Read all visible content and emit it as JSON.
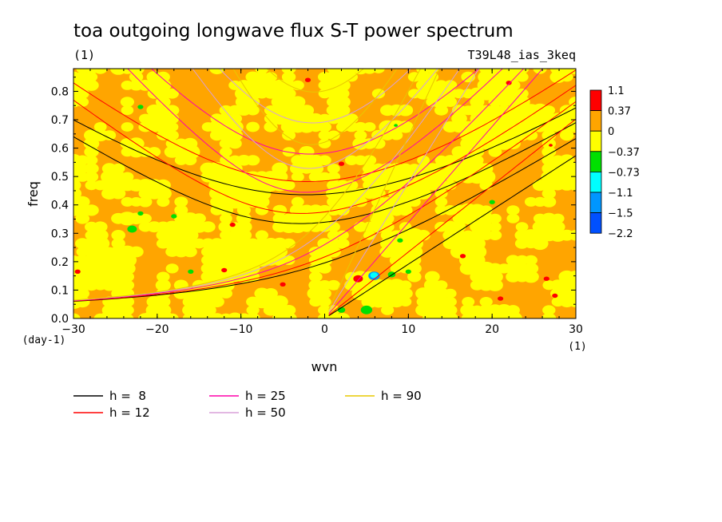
{
  "chart_data": {
    "type": "heatmap",
    "title": "toa outgoing longwave flux S-T power spectrum",
    "subtitle_left": "(1)",
    "subtitle_right": "T39L48_ias_3keq",
    "xlabel": "wvn",
    "ylabel": "freq",
    "x_unit": "(1)",
    "y_unit": "(day-1)",
    "xlim": [
      -30,
      30
    ],
    "ylim": [
      0.0,
      0.88
    ],
    "x_ticks": [
      -30,
      -20,
      -10,
      0,
      10,
      20,
      30
    ],
    "x_tick_labels": [
      "−30",
      "−20",
      "−10",
      "0",
      "10",
      "20",
      "30"
    ],
    "y_ticks": [
      0.0,
      0.1,
      0.2,
      0.3,
      0.4,
      0.5,
      0.6,
      0.7,
      0.8
    ],
    "y_tick_labels": [
      "0.0",
      "0.1",
      "0.2",
      "0.3",
      "0.4",
      "0.5",
      "0.6",
      "0.7",
      "0.8"
    ],
    "contour_levels": [
      "1.1",
      "0.37",
      "0",
      "−0.37",
      "−0.73",
      "−1.1",
      "−1.5",
      "−2.2"
    ],
    "colors": {
      "red": "#ff0000",
      "orange": "#ffa500",
      "yellow": "#ffff00",
      "green": "#00e000",
      "cyan": "#00ffff",
      "lightblue": "#0096ff",
      "blue": "#0050ff"
    },
    "series": [
      {
        "name": "h =  8",
        "h": 8,
        "color": "#000000"
      },
      {
        "name": "h = 12",
        "h": 12,
        "color": "#ff0000"
      },
      {
        "name": "h = 25",
        "h": 25,
        "color": "#ff00aa"
      },
      {
        "name": "h = 50",
        "h": 50,
        "color": "#d8a0d8"
      },
      {
        "name": "h = 90",
        "h": 90,
        "color": "#e8c800"
      }
    ]
  }
}
